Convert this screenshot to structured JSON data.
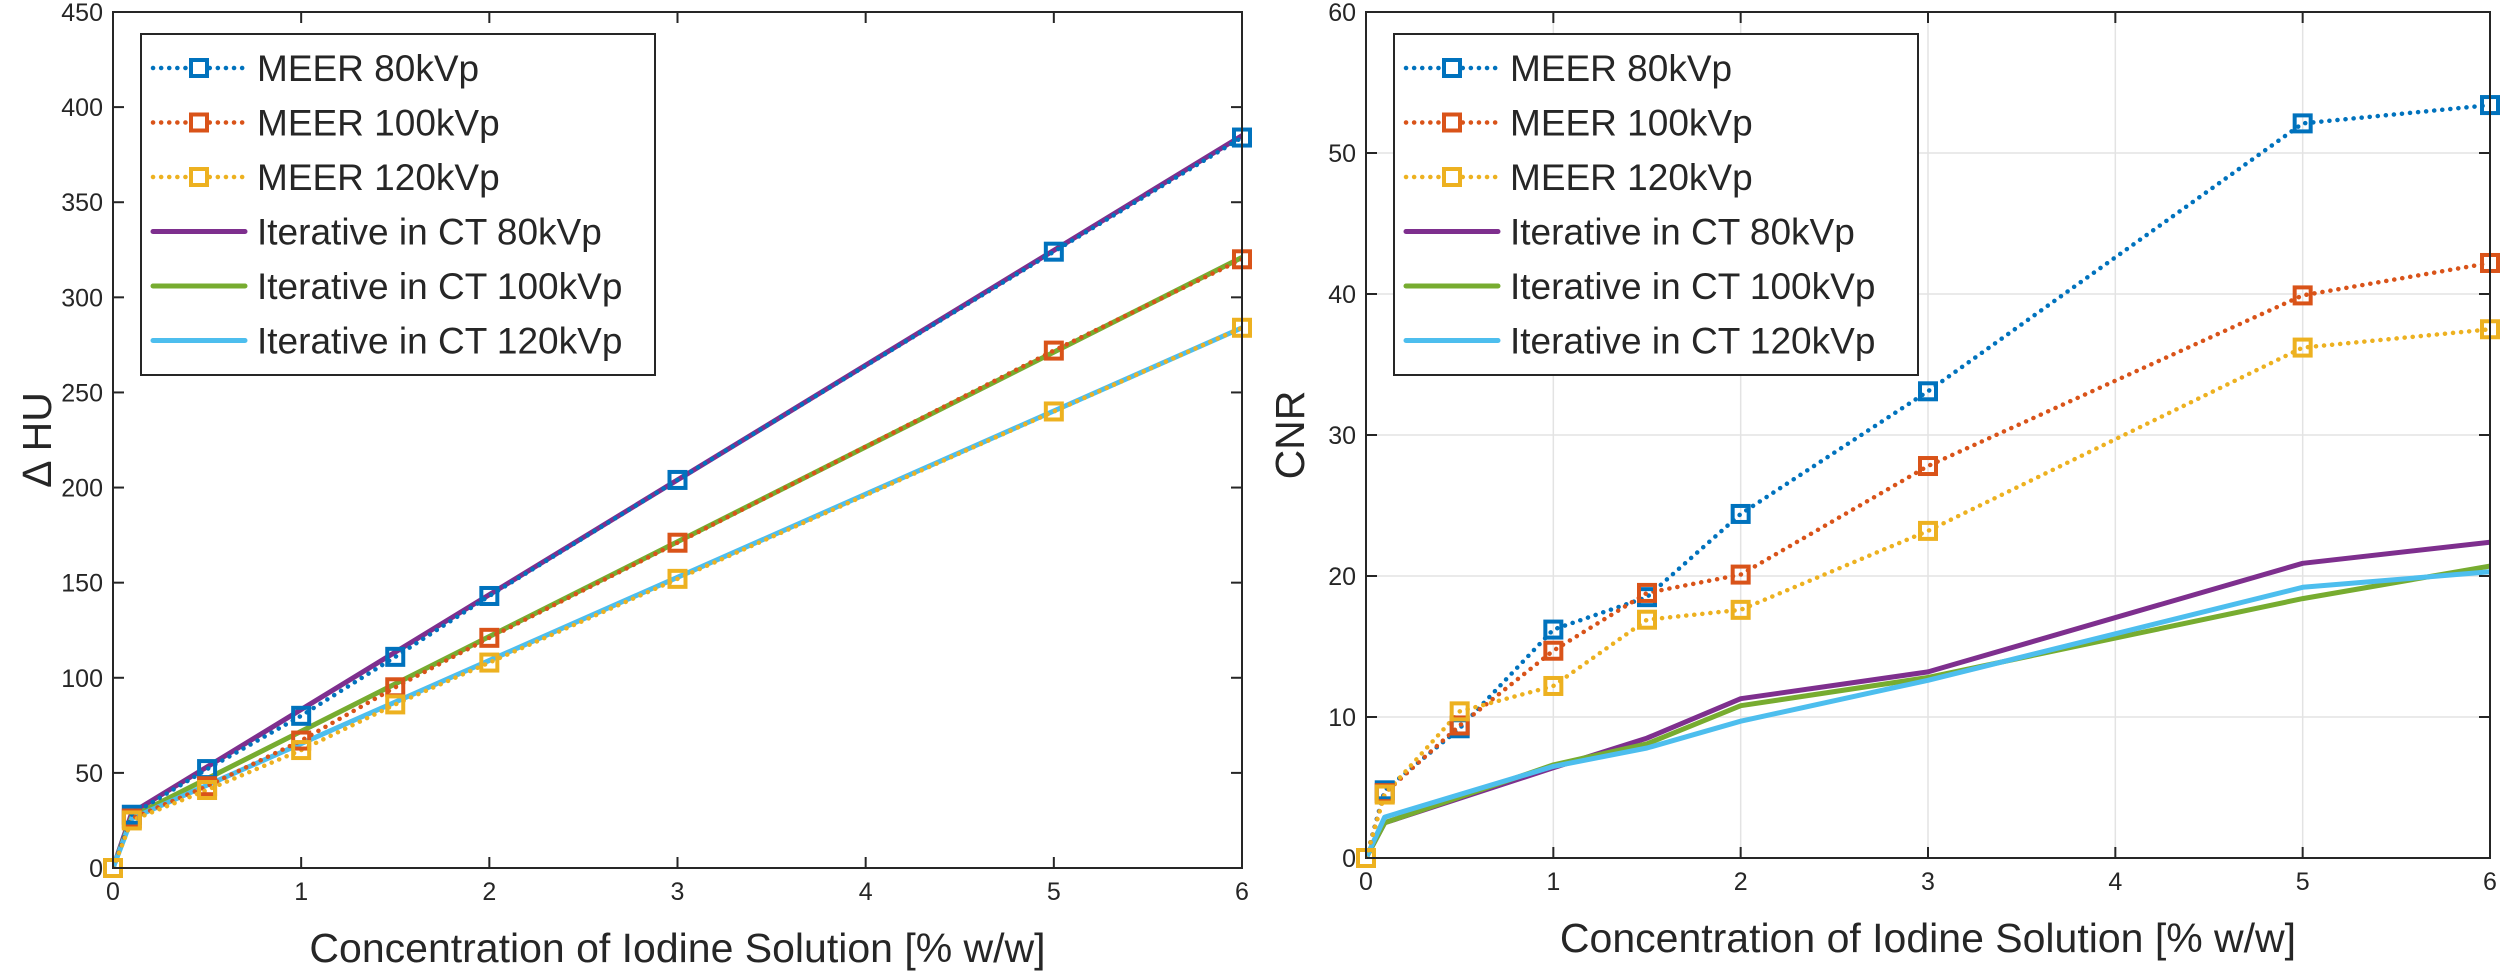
{
  "chart_data": [
    {
      "type": "line",
      "xlabel": "Concentration of Iodine Solution [% w/w]",
      "ylabel": "Δ HU",
      "xlim": [
        0,
        6
      ],
      "ylim": [
        0,
        450
      ],
      "xticks": [
        "0",
        "1",
        "2",
        "3",
        "4",
        "5",
        "6"
      ],
      "yticks": [
        "0",
        "50",
        "100",
        "150",
        "200",
        "250",
        "300",
        "350",
        "400",
        "450"
      ],
      "grid": false,
      "legend_position": "top-left",
      "series": [
        {
          "name": "MEER 80kVp",
          "style": "dotted-square",
          "color": "#0072BD",
          "x": [
            0,
            0.1,
            0.5,
            1,
            1.5,
            2,
            3,
            5,
            6
          ],
          "y": [
            0,
            28,
            52,
            80,
            111,
            143,
            204,
            324,
            384
          ]
        },
        {
          "name": "MEER 100kVp",
          "style": "dotted-square",
          "color": "#D95319",
          "x": [
            0,
            0.1,
            0.5,
            1,
            1.5,
            2,
            3,
            5,
            6
          ],
          "y": [
            0,
            26,
            43,
            67,
            95,
            121,
            171,
            272,
            320
          ]
        },
        {
          "name": "MEER 120kVp",
          "style": "dotted-square",
          "color": "#EDB120",
          "x": [
            0,
            0.1,
            0.5,
            1,
            1.5,
            2,
            3,
            5,
            6
          ],
          "y": [
            0,
            25,
            41,
            62,
            86,
            108,
            152,
            240,
            284
          ]
        },
        {
          "name": "Iterative in CT 80kVp",
          "style": "solid",
          "color": "#7E2F8E",
          "x": [
            0,
            0.1,
            6
          ],
          "y": [
            0,
            29,
            385
          ]
        },
        {
          "name": "Iterative in CT 100kVp",
          "style": "solid",
          "color": "#77AC30",
          "x": [
            0,
            0.1,
            6
          ],
          "y": [
            0,
            27,
            321
          ]
        },
        {
          "name": "Iterative in CT 120kVp",
          "style": "solid",
          "color": "#4DBEEE",
          "x": [
            0,
            0.1,
            6
          ],
          "y": [
            0,
            26,
            284
          ]
        }
      ]
    },
    {
      "type": "line",
      "xlabel": "Concentration of Iodine Solution [% w/w]",
      "ylabel": "CNR",
      "xlim": [
        0,
        6
      ],
      "ylim": [
        0,
        60
      ],
      "xticks": [
        "0",
        "1",
        "2",
        "3",
        "4",
        "5",
        "6"
      ],
      "yticks": [
        "0",
        "10",
        "20",
        "30",
        "40",
        "50",
        "60"
      ],
      "grid": true,
      "legend_position": "top-left",
      "series": [
        {
          "name": "MEER 80kVp",
          "style": "dotted-square",
          "color": "#0072BD",
          "x": [
            0,
            0.1,
            0.5,
            1,
            1.5,
            2,
            3,
            5,
            6
          ],
          "y": [
            0,
            4.8,
            9.2,
            16.2,
            18.5,
            24.4,
            33.1,
            52.1,
            53.4
          ]
        },
        {
          "name": "MEER 100kVp",
          "style": "dotted-square",
          "color": "#D95319",
          "x": [
            0,
            0.1,
            0.5,
            1,
            1.5,
            2,
            3,
            5,
            6
          ],
          "y": [
            0,
            4.6,
            9.4,
            14.7,
            18.8,
            20.1,
            27.8,
            39.9,
            42.2
          ]
        },
        {
          "name": "MEER 120kVp",
          "style": "dotted-square",
          "color": "#EDB120",
          "x": [
            0,
            0.1,
            0.5,
            1,
            1.5,
            2,
            3,
            5,
            6
          ],
          "y": [
            0,
            4.5,
            10.4,
            12.2,
            16.9,
            17.6,
            23.2,
            36.2,
            37.5
          ]
        },
        {
          "name": "Iterative in CT 80kVp",
          "style": "solid",
          "color": "#7E2F8E",
          "x": [
            0,
            0.1,
            1,
            1.5,
            2,
            3,
            5,
            6
          ],
          "y": [
            0,
            2.5,
            6.4,
            8.5,
            11.3,
            13.2,
            20.9,
            22.4
          ]
        },
        {
          "name": "Iterative in CT 100kVp",
          "style": "solid",
          "color": "#77AC30",
          "x": [
            0,
            0.1,
            1,
            1.5,
            2,
            3,
            5,
            6
          ],
          "y": [
            0,
            2.5,
            6.6,
            8.1,
            10.8,
            12.8,
            18.4,
            20.7
          ]
        },
        {
          "name": "Iterative in CT 120kVp",
          "style": "solid",
          "color": "#4DBEEE",
          "x": [
            0,
            0.1,
            1,
            1.5,
            2,
            3,
            5,
            6
          ],
          "y": [
            0,
            2.9,
            6.5,
            7.8,
            9.7,
            12.6,
            19.2,
            20.3
          ]
        }
      ]
    }
  ]
}
